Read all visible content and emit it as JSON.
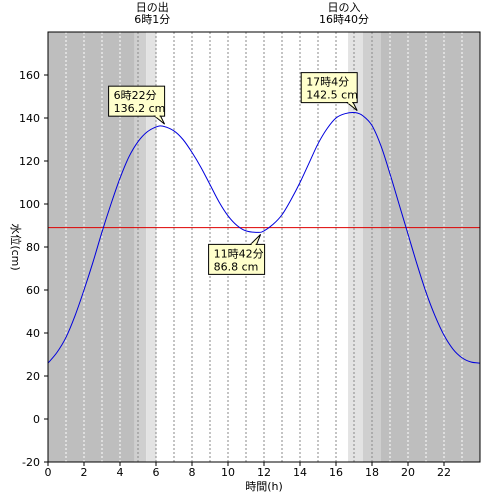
{
  "chart_data": {
    "type": "line",
    "xlabel": "時間(h)",
    "ylabel": "水位(cm)",
    "xlim": [
      0,
      24
    ],
    "ylim": [
      -20,
      180
    ],
    "x_ticks": [
      0,
      2,
      4,
      6,
      8,
      10,
      12,
      14,
      16,
      18,
      20,
      22
    ],
    "y_ticks": [
      -20,
      0,
      20,
      40,
      60,
      80,
      100,
      120,
      140,
      160
    ],
    "grid": true,
    "reference_line": 89,
    "colors": {
      "line": "#0000dd",
      "reference": "#dd0000",
      "night": "#bebebe",
      "twilight_dark": "#cfcfcf",
      "twilight_light": "#e3e3e3",
      "callout_fill": "#ffffcc"
    },
    "night_periods": [
      [
        0,
        4.8
      ],
      [
        18.5,
        24
      ]
    ],
    "twilight_periods": [
      [
        4.8,
        5.45,
        "dark"
      ],
      [
        5.45,
        6.02,
        "light"
      ],
      [
        16.67,
        17.5,
        "light"
      ],
      [
        17.5,
        18.5,
        "dark"
      ]
    ],
    "sun_events": [
      {
        "name": "日の出",
        "time": "6時1分",
        "x": 6.0167
      },
      {
        "name": "日の入",
        "time": "16時40分",
        "x": 16.6667
      }
    ],
    "extrema": [
      {
        "x": 6.3667,
        "y": 136.2,
        "time": "6時22分",
        "value": "136.2 cm",
        "placement": "above-left"
      },
      {
        "x": 11.7,
        "y": 86.8,
        "time": "11時42分",
        "value": "86.8 cm",
        "placement": "below-left"
      },
      {
        "x": 17.0667,
        "y": 142.5,
        "time": "17時4分",
        "value": "142.5 cm",
        "placement": "above-left"
      }
    ],
    "series": [
      {
        "x": [
          0,
          0.5,
          1,
          1.5,
          2,
          2.5,
          3,
          3.5,
          4,
          4.5,
          5,
          5.5,
          6,
          6.37,
          7,
          7.5,
          8,
          8.5,
          9,
          9.5,
          10,
          10.5,
          11,
          11.7,
          12,
          12.5,
          13,
          13.5,
          14,
          14.5,
          15,
          15.5,
          16,
          16.5,
          17.07,
          17.5,
          18,
          18.5,
          19,
          19.5,
          20,
          20.5,
          21,
          21.5,
          22,
          22.5,
          23,
          23.5,
          24
        ],
        "y": [
          26,
          31,
          38,
          48,
          60,
          73,
          87,
          100,
          112,
          122,
          129,
          133.5,
          135.8,
          136.2,
          134,
          130,
          124,
          117,
          109,
          101,
          94.5,
          90,
          87.5,
          86.8,
          87.5,
          90.5,
          95,
          102,
          110,
          119,
          128,
          135,
          140,
          142,
          142.5,
          141,
          136.5,
          127,
          114,
          100,
          86,
          72,
          59,
          48,
          39,
          32.5,
          28.5,
          26.5,
          26
        ]
      }
    ]
  }
}
